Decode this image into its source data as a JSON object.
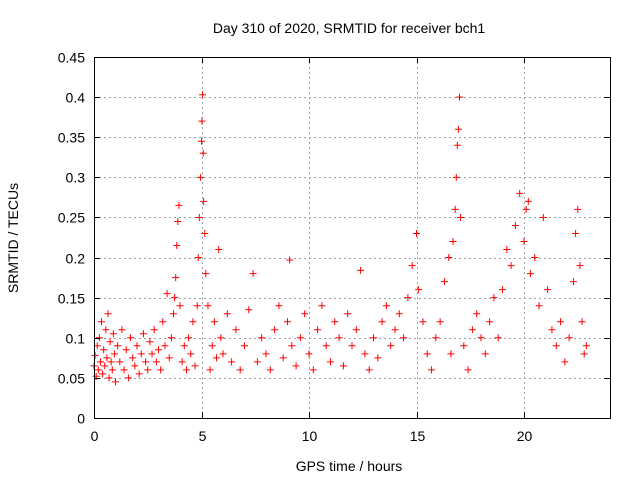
{
  "chart_data": {
    "type": "scatter",
    "title": "Day 310 of 2020, SRMTID for receiver bch1",
    "xlabel": "GPS time / hours",
    "ylabel": "SRMTID / TECUs",
    "xlim": [
      0,
      24
    ],
    "ylim": [
      0,
      0.45
    ],
    "xticks": [
      0,
      5,
      10,
      15,
      20
    ],
    "xtick_labels": [
      "0",
      "5",
      "10",
      "15",
      "20"
    ],
    "yticks": [
      0,
      0.05,
      0.1,
      0.15,
      0.2,
      0.25,
      0.3,
      0.35,
      0.4,
      0.45
    ],
    "ytick_labels": [
      "0",
      "0.05",
      "0.1",
      "0.15",
      "0.2",
      "0.25",
      "0.3",
      "0.35",
      "0.4",
      "0.45"
    ],
    "grid": true,
    "marker": "+",
    "color": "#ff0000",
    "series": [
      {
        "name": "SRMTID",
        "points": [
          [
            0.0,
            0.065
          ],
          [
            0.05,
            0.078
          ],
          [
            0.1,
            0.052
          ],
          [
            0.15,
            0.09
          ],
          [
            0.2,
            0.06
          ],
          [
            0.25,
            0.1
          ],
          [
            0.3,
            0.07
          ],
          [
            0.35,
            0.12
          ],
          [
            0.4,
            0.055
          ],
          [
            0.45,
            0.085
          ],
          [
            0.5,
            0.065
          ],
          [
            0.55,
            0.11
          ],
          [
            0.6,
            0.075
          ],
          [
            0.65,
            0.13
          ],
          [
            0.7,
            0.05
          ],
          [
            0.75,
            0.095
          ],
          [
            0.8,
            0.07
          ],
          [
            0.85,
            0.06
          ],
          [
            0.9,
            0.105
          ],
          [
            0.95,
            0.08
          ],
          [
            1.0,
            0.045
          ],
          [
            1.1,
            0.09
          ],
          [
            1.2,
            0.07
          ],
          [
            1.3,
            0.11
          ],
          [
            1.4,
            0.06
          ],
          [
            1.5,
            0.085
          ],
          [
            1.6,
            0.05
          ],
          [
            1.7,
            0.1
          ],
          [
            1.8,
            0.075
          ],
          [
            1.9,
            0.065
          ],
          [
            2.0,
            0.09
          ],
          [
            2.1,
            0.055
          ],
          [
            2.2,
            0.08
          ],
          [
            2.3,
            0.105
          ],
          [
            2.4,
            0.07
          ],
          [
            2.5,
            0.06
          ],
          [
            2.6,
            0.095
          ],
          [
            2.7,
            0.08
          ],
          [
            2.8,
            0.11
          ],
          [
            2.9,
            0.07
          ],
          [
            3.0,
            0.085
          ],
          [
            3.1,
            0.06
          ],
          [
            3.2,
            0.12
          ],
          [
            3.3,
            0.09
          ],
          [
            3.4,
            0.155
          ],
          [
            3.5,
            0.075
          ],
          [
            3.6,
            0.1
          ],
          [
            3.7,
            0.13
          ],
          [
            3.75,
            0.15
          ],
          [
            3.8,
            0.175
          ],
          [
            3.85,
            0.215
          ],
          [
            3.9,
            0.245
          ],
          [
            3.95,
            0.265
          ],
          [
            4.0,
            0.14
          ],
          [
            4.1,
            0.07
          ],
          [
            4.2,
            0.09
          ],
          [
            4.3,
            0.06
          ],
          [
            4.4,
            0.1
          ],
          [
            4.5,
            0.08
          ],
          [
            4.6,
            0.12
          ],
          [
            4.7,
            0.065
          ],
          [
            4.8,
            0.14
          ],
          [
            4.85,
            0.2
          ],
          [
            4.9,
            0.25
          ],
          [
            4.95,
            0.3
          ],
          [
            5.0,
            0.345
          ],
          [
            5.02,
            0.37
          ],
          [
            5.05,
            0.403
          ],
          [
            5.08,
            0.33
          ],
          [
            5.1,
            0.27
          ],
          [
            5.15,
            0.23
          ],
          [
            5.2,
            0.18
          ],
          [
            5.3,
            0.14
          ],
          [
            5.4,
            0.06
          ],
          [
            5.5,
            0.09
          ],
          [
            5.6,
            0.12
          ],
          [
            5.7,
            0.075
          ],
          [
            5.8,
            0.21
          ],
          [
            5.9,
            0.1
          ],
          [
            6.0,
            0.08
          ],
          [
            6.2,
            0.13
          ],
          [
            6.4,
            0.07
          ],
          [
            6.6,
            0.11
          ],
          [
            6.8,
            0.06
          ],
          [
            7.0,
            0.09
          ],
          [
            7.2,
            0.135
          ],
          [
            7.4,
            0.18
          ],
          [
            7.6,
            0.07
          ],
          [
            7.8,
            0.1
          ],
          [
            8.0,
            0.08
          ],
          [
            8.2,
            0.06
          ],
          [
            8.4,
            0.11
          ],
          [
            8.6,
            0.14
          ],
          [
            8.8,
            0.075
          ],
          [
            9.0,
            0.12
          ],
          [
            9.1,
            0.197
          ],
          [
            9.2,
            0.09
          ],
          [
            9.4,
            0.065
          ],
          [
            9.6,
            0.1
          ],
          [
            9.8,
            0.13
          ],
          [
            10.0,
            0.08
          ],
          [
            10.2,
            0.06
          ],
          [
            10.4,
            0.11
          ],
          [
            10.6,
            0.14
          ],
          [
            10.8,
            0.09
          ],
          [
            11.0,
            0.07
          ],
          [
            11.2,
            0.12
          ],
          [
            11.4,
            0.1
          ],
          [
            11.6,
            0.065
          ],
          [
            11.8,
            0.13
          ],
          [
            12.0,
            0.09
          ],
          [
            12.2,
            0.11
          ],
          [
            12.4,
            0.184
          ],
          [
            12.6,
            0.08
          ],
          [
            12.8,
            0.06
          ],
          [
            13.0,
            0.1
          ],
          [
            13.2,
            0.075
          ],
          [
            13.4,
            0.12
          ],
          [
            13.6,
            0.14
          ],
          [
            13.8,
            0.09
          ],
          [
            14.0,
            0.11
          ],
          [
            14.2,
            0.13
          ],
          [
            14.4,
            0.1
          ],
          [
            14.6,
            0.15
          ],
          [
            14.8,
            0.19
          ],
          [
            15.0,
            0.23
          ],
          [
            15.1,
            0.16
          ],
          [
            15.3,
            0.12
          ],
          [
            15.5,
            0.08
          ],
          [
            15.7,
            0.06
          ],
          [
            15.9,
            0.1
          ],
          [
            16.1,
            0.12
          ],
          [
            16.3,
            0.17
          ],
          [
            16.5,
            0.2
          ],
          [
            16.6,
            0.08
          ],
          [
            16.7,
            0.22
          ],
          [
            16.8,
            0.26
          ],
          [
            16.85,
            0.3
          ],
          [
            16.9,
            0.34
          ],
          [
            16.95,
            0.36
          ],
          [
            17.0,
            0.4
          ],
          [
            17.05,
            0.25
          ],
          [
            17.2,
            0.09
          ],
          [
            17.4,
            0.06
          ],
          [
            17.6,
            0.11
          ],
          [
            17.8,
            0.13
          ],
          [
            18.0,
            0.1
          ],
          [
            18.2,
            0.08
          ],
          [
            18.4,
            0.12
          ],
          [
            18.6,
            0.15
          ],
          [
            18.8,
            0.1
          ],
          [
            19.0,
            0.16
          ],
          [
            19.2,
            0.21
          ],
          [
            19.4,
            0.19
          ],
          [
            19.6,
            0.24
          ],
          [
            19.8,
            0.28
          ],
          [
            20.0,
            0.22
          ],
          [
            20.1,
            0.26
          ],
          [
            20.2,
            0.27
          ],
          [
            20.3,
            0.18
          ],
          [
            20.5,
            0.2
          ],
          [
            20.7,
            0.14
          ],
          [
            20.9,
            0.25
          ],
          [
            21.1,
            0.16
          ],
          [
            21.3,
            0.11
          ],
          [
            21.5,
            0.09
          ],
          [
            21.7,
            0.12
          ],
          [
            21.9,
            0.07
          ],
          [
            22.1,
            0.1
          ],
          [
            22.3,
            0.17
          ],
          [
            22.4,
            0.23
          ],
          [
            22.5,
            0.26
          ],
          [
            22.6,
            0.19
          ],
          [
            22.7,
            0.12
          ],
          [
            22.8,
            0.08
          ],
          [
            22.9,
            0.09
          ]
        ]
      }
    ]
  }
}
